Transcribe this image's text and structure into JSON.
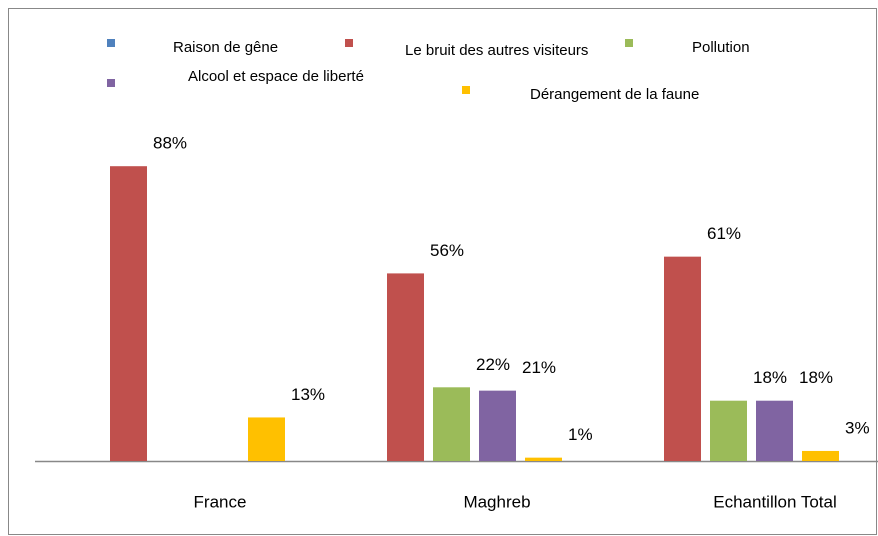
{
  "chart_data": {
    "type": "bar",
    "categories": [
      "France",
      "Maghreb",
      "Echantillon Total"
    ],
    "series": [
      {
        "name": "Raison de gêne",
        "color": "#4f81bd",
        "values": [
          null,
          null,
          null
        ],
        "value_labels": [
          null,
          null,
          null
        ]
      },
      {
        "name": "Le bruit des autres visiteurs",
        "color": "#c0504d",
        "values": [
          88,
          56,
          61
        ],
        "value_labels": [
          "88%",
          "56%",
          "61%"
        ]
      },
      {
        "name": "Pollution",
        "color": "#9bbb59",
        "values": [
          null,
          22,
          18
        ],
        "value_labels": [
          null,
          "22%",
          "18%"
        ]
      },
      {
        "name": "Alcool et espace de liberté",
        "color": "#8064a2",
        "values": [
          null,
          21,
          18
        ],
        "value_labels": [
          null,
          "21%",
          "18%"
        ]
      },
      {
        "name": "Dérangement de la faune",
        "color": "#ffc000",
        "values": [
          13,
          1,
          3
        ],
        "value_labels": [
          "13%",
          "1%",
          "3%"
        ]
      }
    ]
  }
}
